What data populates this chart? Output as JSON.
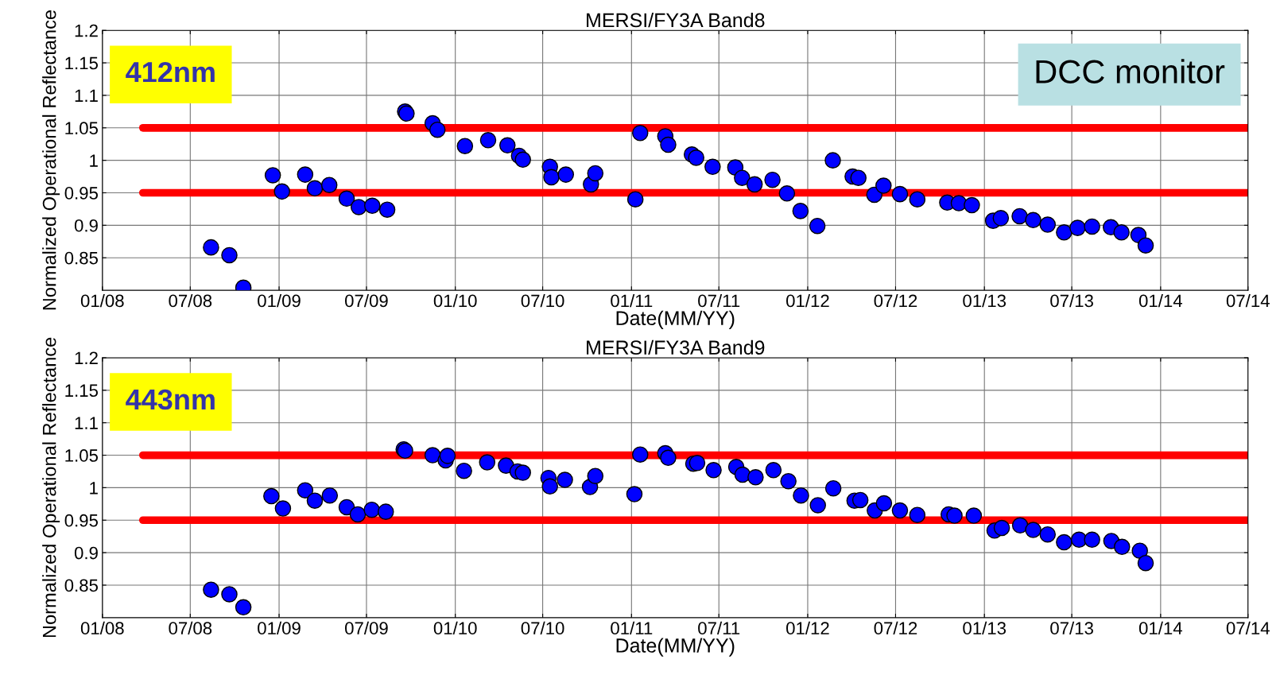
{
  "chart_data": [
    {
      "type": "scatter",
      "title": "MERSI/FY3A Band8",
      "xlabel": "Date(MM/YY)",
      "ylabel": "Normalized Operational Reflectance",
      "annotations": [
        "412nm",
        "DCC monitor"
      ],
      "xlim": [
        "2008-01",
        "2014-07"
      ],
      "ylim": [
        0.8,
        1.2
      ],
      "xticks": [
        {
          "value": "2008-01",
          "label": "01/08"
        },
        {
          "value": "2008-07",
          "label": "07/08"
        },
        {
          "value": "2009-01",
          "label": "01/09"
        },
        {
          "value": "2009-07",
          "label": "07/09"
        },
        {
          "value": "2010-01",
          "label": "01/10"
        },
        {
          "value": "2010-07",
          "label": "07/10"
        },
        {
          "value": "2011-01",
          "label": "01/11"
        },
        {
          "value": "2011-07",
          "label": "07/11"
        },
        {
          "value": "2012-01",
          "label": "01/12"
        },
        {
          "value": "2012-07",
          "label": "07/12"
        },
        {
          "value": "2013-01",
          "label": "01/13"
        },
        {
          "value": "2013-07",
          "label": "07/13"
        },
        {
          "value": "2014-01",
          "label": "01/14"
        },
        {
          "value": "2014-07",
          "label": "07/14"
        }
      ],
      "yticks": [
        0.85,
        0.9,
        0.95,
        1,
        1.05,
        1.1,
        1.15,
        1.2
      ],
      "grid": true,
      "series": [
        {
          "type": "line",
          "color": "#ff0000",
          "x": [
            "2008-03-25",
            "2014-07-01"
          ],
          "values": [
            1.05,
            1.05
          ]
        },
        {
          "type": "line",
          "color": "#ff0000",
          "x": [
            "2008-03-25",
            "2014-07-01"
          ],
          "values": [
            0.95,
            0.95
          ]
        },
        {
          "color": "#0000ff",
          "marker": "circle",
          "x": [
            "2008-08-13",
            "2008-09-20",
            "2008-10-19",
            "2008-12-19",
            "2009-01-07",
            "2009-02-24",
            "2009-03-16",
            "2009-04-15",
            "2009-05-21",
            "2009-06-15",
            "2009-07-13",
            "2009-08-13",
            "2009-09-19",
            "2009-09-22",
            "2009-11-15",
            "2009-11-25",
            "2010-01-21",
            "2010-03-10",
            "2010-04-19",
            "2010-05-13",
            "2010-05-21",
            "2010-07-16",
            "2010-07-19",
            "2010-08-18",
            "2010-10-09",
            "2010-10-18",
            "2011-01-09",
            "2011-01-19",
            "2011-03-12",
            "2011-03-18",
            "2011-05-06",
            "2011-05-15",
            "2011-06-18",
            "2011-08-04",
            "2011-08-18",
            "2011-09-13",
            "2011-10-20",
            "2011-11-19",
            "2011-12-17",
            "2012-01-21",
            "2012-02-22",
            "2012-04-03",
            "2012-04-15",
            "2012-05-18",
            "2012-06-06",
            "2012-07-10",
            "2012-08-15",
            "2012-10-16",
            "2012-11-09",
            "2012-12-06",
            "2013-01-19",
            "2013-02-04",
            "2013-03-15",
            "2013-04-12",
            "2013-05-12",
            "2013-06-15",
            "2013-07-13",
            "2013-08-12",
            "2013-09-20",
            "2013-10-12",
            "2013-11-16",
            "2013-12-01"
          ],
          "values": [
            0.866,
            0.854,
            0.804,
            0.977,
            0.952,
            0.978,
            0.957,
            0.962,
            0.941,
            0.928,
            0.93,
            0.924,
            1.075,
            1.072,
            1.057,
            1.047,
            1.022,
            1.031,
            1.023,
            1.007,
            1.001,
            0.99,
            0.974,
            0.978,
            0.963,
            0.98,
            0.94,
            1.042,
            1.037,
            1.024,
            1.009,
            1.004,
            0.99,
            0.989,
            0.973,
            0.963,
            0.97,
            0.949,
            0.922,
            0.899,
            1.0,
            0.975,
            0.973,
            0.947,
            0.961,
            0.948,
            0.94,
            0.935,
            0.934,
            0.931,
            0.907,
            0.911,
            0.914,
            0.908,
            0.901,
            0.889,
            0.896,
            0.898,
            0.897,
            0.889,
            0.885,
            0.869
          ]
        }
      ]
    },
    {
      "type": "scatter",
      "title": "MERSI/FY3A Band9",
      "xlabel": "Date(MM/YY)",
      "ylabel": "Normalized Operational Reflectance",
      "annotations": [
        "443nm"
      ],
      "xlim": [
        "2008-01",
        "2014-07"
      ],
      "ylim": [
        0.8,
        1.2
      ],
      "xticks": [
        {
          "value": "2008-01",
          "label": "01/08"
        },
        {
          "value": "2008-07",
          "label": "07/08"
        },
        {
          "value": "2009-01",
          "label": "01/09"
        },
        {
          "value": "2009-07",
          "label": "07/09"
        },
        {
          "value": "2010-01",
          "label": "01/10"
        },
        {
          "value": "2010-07",
          "label": "07/10"
        },
        {
          "value": "2011-01",
          "label": "01/11"
        },
        {
          "value": "2011-07",
          "label": "07/11"
        },
        {
          "value": "2012-01",
          "label": "01/12"
        },
        {
          "value": "2012-07",
          "label": "07/12"
        },
        {
          "value": "2013-01",
          "label": "01/13"
        },
        {
          "value": "2013-07",
          "label": "07/13"
        },
        {
          "value": "2014-01",
          "label": "01/14"
        },
        {
          "value": "2014-07",
          "label": "07/14"
        }
      ],
      "yticks": [
        0.85,
        0.9,
        0.95,
        1,
        1.05,
        1.1,
        1.15,
        1.2
      ],
      "grid": true,
      "series": [
        {
          "type": "line",
          "color": "#ff0000",
          "x": [
            "2008-03-25",
            "2014-07-01"
          ],
          "values": [
            1.05,
            1.05
          ]
        },
        {
          "type": "line",
          "color": "#ff0000",
          "x": [
            "2008-03-25",
            "2014-07-01"
          ],
          "values": [
            0.95,
            0.95
          ]
        },
        {
          "color": "#0000ff",
          "marker": "circle",
          "x": [
            "2008-08-13",
            "2008-09-20",
            "2008-10-19",
            "2008-12-16",
            "2009-01-09",
            "2009-02-24",
            "2009-03-16",
            "2009-04-16",
            "2009-05-21",
            "2009-06-13",
            "2009-07-12",
            "2009-08-10",
            "2009-09-16",
            "2009-09-19",
            "2009-11-15",
            "2009-12-12",
            "2009-12-16",
            "2010-01-19",
            "2010-03-08",
            "2010-04-16",
            "2010-05-10",
            "2010-05-21",
            "2010-07-13",
            "2010-07-16",
            "2010-08-16",
            "2010-10-07",
            "2010-10-18",
            "2011-01-07",
            "2011-01-19",
            "2011-03-12",
            "2011-03-18",
            "2011-05-09",
            "2011-05-17",
            "2011-06-20",
            "2011-08-06",
            "2011-08-19",
            "2011-09-15",
            "2011-10-22",
            "2011-11-22",
            "2011-12-18",
            "2012-01-22",
            "2012-02-23",
            "2012-04-07",
            "2012-04-19",
            "2012-05-19",
            "2012-06-07",
            "2012-07-10",
            "2012-08-15",
            "2012-10-19",
            "2012-10-31",
            "2012-12-10",
            "2013-01-22",
            "2013-02-06",
            "2013-03-16",
            "2013-04-12",
            "2013-05-12",
            "2013-06-15",
            "2013-07-16",
            "2013-08-12",
            "2013-09-21",
            "2013-10-13",
            "2013-11-19",
            "2013-12-01"
          ],
          "values": [
            0.843,
            0.836,
            0.816,
            0.987,
            0.968,
            0.996,
            0.98,
            0.988,
            0.97,
            0.959,
            0.966,
            0.963,
            1.059,
            1.057,
            1.05,
            1.042,
            1.049,
            1.026,
            1.039,
            1.034,
            1.025,
            1.023,
            1.015,
            1.002,
            1.012,
            1.001,
            1.018,
            0.99,
            1.051,
            1.053,
            1.046,
            1.037,
            1.038,
            1.027,
            1.032,
            1.02,
            1.016,
            1.027,
            1.01,
            0.988,
            0.973,
            0.999,
            0.98,
            0.981,
            0.965,
            0.976,
            0.965,
            0.958,
            0.959,
            0.957,
            0.957,
            0.934,
            0.938,
            0.942,
            0.935,
            0.928,
            0.916,
            0.92,
            0.92,
            0.918,
            0.909,
            0.903,
            0.884
          ]
        }
      ]
    }
  ]
}
